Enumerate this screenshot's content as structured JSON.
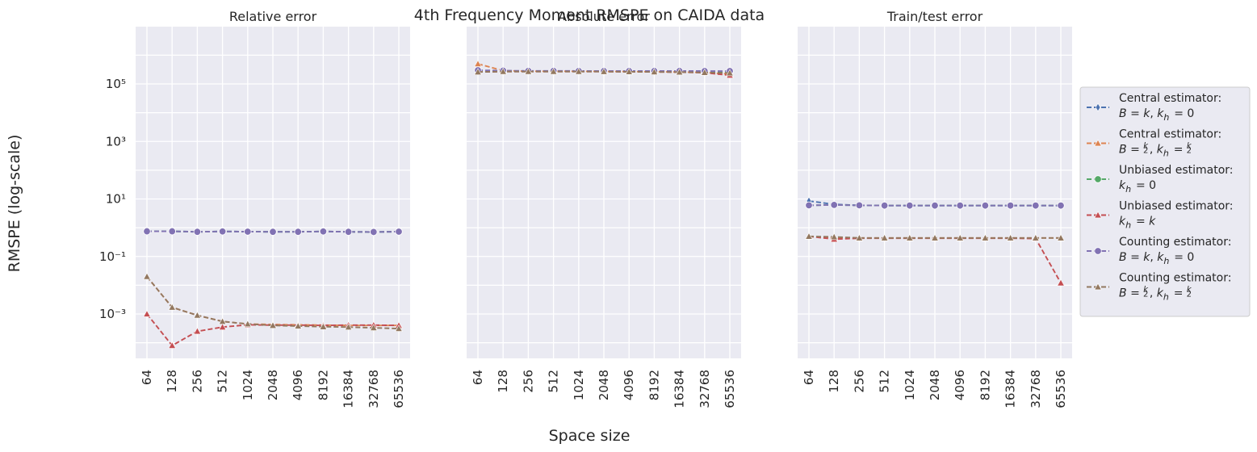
{
  "suptitle": "4th Frequency Moment RMSPE on CAIDA data",
  "xlabel": "Space size",
  "ylabel": "RMSPE (log-scale)",
  "legend": {
    "placement": "right-outside",
    "entries": [
      {
        "line1": "Central estimator:",
        "line2": "B = k, k_h = 0",
        "color": "#4c72b0",
        "marker": "diamond"
      },
      {
        "line1": "Central estimator:",
        "line2": "B = k/2, k_h = k/2",
        "color": "#dd8452",
        "marker": "triangle"
      },
      {
        "line1": "Unbiased estimator:",
        "line2": "k_h = 0",
        "color": "#55a868",
        "marker": "circle"
      },
      {
        "line1": "Unbiased estimator:",
        "line2": "k_h = k",
        "color": "#c44e52",
        "marker": "triangle"
      },
      {
        "line1": "Counting estimator:",
        "line2": "B = k, k_h = 0",
        "color": "#8172b3",
        "marker": "circle"
      },
      {
        "line1": "Counting estimator:",
        "line2": "B = k/2, k_h = k/2",
        "color": "#937860",
        "marker": "triangle"
      }
    ]
  },
  "chart_data": [
    {
      "type": "line",
      "title": "Relative error",
      "yscale": "log",
      "ylim": [
        2.5e-05,
        2000000
      ],
      "yticks": [
        "10^-3",
        "10^-1",
        "10^1",
        "10^3",
        "10^5"
      ],
      "categories": [
        "64",
        "128",
        "256",
        "512",
        "1024",
        "2048",
        "4096",
        "8192",
        "16384",
        "32768",
        "65536"
      ],
      "grid": true,
      "series": [
        {
          "name": "Central estimator: B=k, k_h=0",
          "values": [
            0.75,
            0.75,
            0.72,
            0.74,
            0.73,
            0.72,
            0.72,
            0.74,
            0.72,
            0.71,
            0.73
          ]
        },
        {
          "name": "Central estimator: B=k/2, k_h=k/2",
          "values": [
            0.02,
            0.0017,
            0.0009,
            0.00055,
            0.00045,
            0.00043,
            0.00042,
            0.00041,
            0.0004,
            0.0004,
            0.0004
          ]
        },
        {
          "name": "Unbiased estimator: k_h=0",
          "values": [
            0.75,
            0.75,
            0.72,
            0.74,
            0.73,
            0.72,
            0.72,
            0.74,
            0.72,
            0.71,
            0.73
          ]
        },
        {
          "name": "Unbiased estimator: k_h=k",
          "values": [
            0.001,
            8e-05,
            0.00025,
            0.00035,
            0.00042,
            0.00041,
            0.00041,
            0.0004,
            0.00041,
            0.00041,
            0.0004
          ]
        },
        {
          "name": "Counting estimator: B=k, k_h=0",
          "values": [
            0.75,
            0.75,
            0.72,
            0.74,
            0.73,
            0.72,
            0.72,
            0.74,
            0.72,
            0.71,
            0.73
          ]
        },
        {
          "name": "Counting estimator: B=k/2, k_h=k/2",
          "values": [
            0.02,
            0.0017,
            0.0009,
            0.00055,
            0.00045,
            0.0004,
            0.00038,
            0.00036,
            0.00035,
            0.00033,
            0.00031
          ]
        }
      ]
    },
    {
      "type": "line",
      "title": "Absolute error",
      "yscale": "log",
      "ylim": [
        2.5e-05,
        2000000
      ],
      "categories": [
        "64",
        "128",
        "256",
        "512",
        "1024",
        "2048",
        "4096",
        "8192",
        "16384",
        "32768",
        "65536"
      ],
      "grid": true,
      "series": [
        {
          "name": "Central estimator: B=k, k_h=0",
          "values": [
            290000,
            280000,
            275000,
            275000,
            275000,
            272000,
            272000,
            272000,
            272000,
            270000,
            265000
          ]
        },
        {
          "name": "Central estimator: B=k/2, k_h=k/2",
          "values": [
            500000,
            290000,
            275000,
            275000,
            275000,
            272000,
            270000,
            265000,
            260000,
            250000,
            220000
          ]
        },
        {
          "name": "Unbiased estimator: k_h=0",
          "values": [
            290000,
            280000,
            275000,
            275000,
            275000,
            272000,
            272000,
            272000,
            272000,
            270000,
            265000
          ]
        },
        {
          "name": "Unbiased estimator: k_h=k",
          "values": [
            260000,
            270000,
            270000,
            270000,
            270000,
            268000,
            265000,
            262000,
            258000,
            245000,
            200000
          ]
        },
        {
          "name": "Counting estimator: B=k, k_h=0",
          "values": [
            300000,
            290000,
            285000,
            285000,
            283000,
            282000,
            282000,
            282000,
            282000,
            281000,
            280000
          ]
        },
        {
          "name": "Counting estimator: B=k/2, k_h=k/2",
          "values": [
            260000,
            270000,
            270000,
            270000,
            270000,
            268000,
            265000,
            262000,
            258000,
            250000,
            240000
          ]
        }
      ]
    },
    {
      "type": "line",
      "title": "Train/test error",
      "yscale": "log",
      "ylim": [
        2.5e-05,
        2000000
      ],
      "categories": [
        "64",
        "128",
        "256",
        "512",
        "1024",
        "2048",
        "4096",
        "8192",
        "16384",
        "32768",
        "65536"
      ],
      "grid": true,
      "series": [
        {
          "name": "Central estimator: B=k, k_h=0",
          "values": [
            8.5,
            6.5,
            6.0,
            5.9,
            5.9,
            5.9,
            5.9,
            5.9,
            5.9,
            5.9,
            5.9
          ]
        },
        {
          "name": "Central estimator: B=k/2, k_h=k/2",
          "values": [
            0.5,
            0.45,
            0.44,
            0.44,
            0.44,
            0.44,
            0.44,
            0.44,
            0.44,
            0.44,
            0.44
          ]
        },
        {
          "name": "Unbiased estimator: k_h=0",
          "values": [
            6.0,
            6.2,
            6.0,
            5.9,
            5.9,
            5.9,
            5.9,
            5.9,
            5.9,
            5.9,
            5.9
          ]
        },
        {
          "name": "Unbiased estimator: k_h=k",
          "values": [
            0.5,
            0.4,
            0.43,
            0.43,
            0.43,
            0.43,
            0.43,
            0.43,
            0.43,
            0.42,
            0.012
          ]
        },
        {
          "name": "Counting estimator: B=k, k_h=0",
          "values": [
            6.0,
            6.2,
            6.0,
            5.9,
            5.9,
            5.9,
            5.9,
            5.9,
            5.9,
            5.9,
            5.9
          ]
        },
        {
          "name": "Counting estimator: B=k/2, k_h=k/2",
          "values": [
            0.5,
            0.48,
            0.44,
            0.44,
            0.44,
            0.44,
            0.44,
            0.44,
            0.44,
            0.44,
            0.44
          ]
        }
      ]
    }
  ]
}
